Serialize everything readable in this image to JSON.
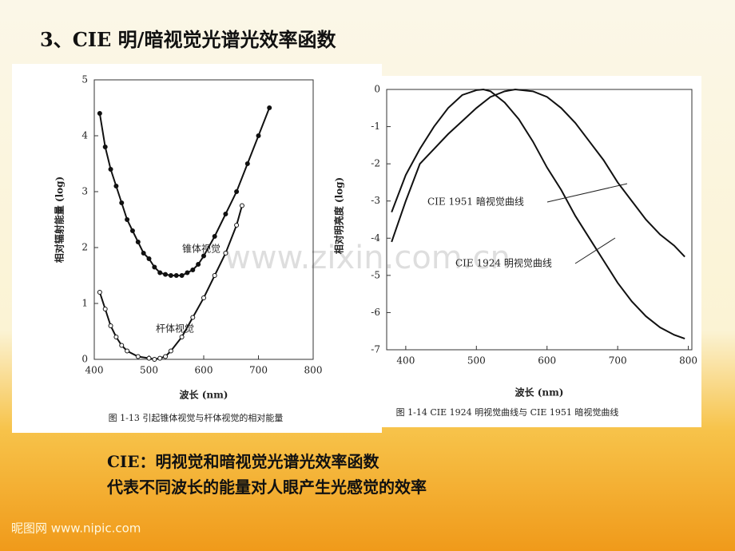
{
  "slide": {
    "title": "3、CIE 明/暗视觉光谱光效率函数",
    "lines": [
      "CIE：明视觉和暗视觉光谱光效率函数",
      "代表不同波长的能量对人眼产生光感觉的效率"
    ],
    "watermark": "www.zixin.com.cn",
    "footer": "昵图网 www.nipic.com"
  },
  "chart_data": [
    {
      "type": "line",
      "caption": "图 1-13  引起锥体视觉与杆体视觉的相对能量",
      "xlabel": "波长 (nm)",
      "ylabel": "相对辐射能量 (log)",
      "xlim": [
        400,
        800
      ],
      "xticks": [
        400,
        500,
        600,
        700,
        800
      ],
      "ylim": [
        0,
        5
      ],
      "yticks": [
        0,
        1,
        2,
        3,
        4,
        5
      ],
      "markers": true,
      "series": [
        {
          "name": "锥体视觉",
          "color": "#111111",
          "x": [
            410,
            420,
            430,
            440,
            450,
            460,
            470,
            480,
            490,
            500,
            510,
            520,
            530,
            540,
            550,
            560,
            570,
            580,
            590,
            600,
            620,
            640,
            660,
            680,
            700,
            720
          ],
          "values": [
            4.4,
            3.8,
            3.4,
            3.1,
            2.8,
            2.5,
            2.3,
            2.1,
            1.9,
            1.8,
            1.65,
            1.55,
            1.52,
            1.5,
            1.5,
            1.5,
            1.55,
            1.6,
            1.7,
            1.85,
            2.2,
            2.6,
            3.0,
            3.5,
            4.0,
            4.5
          ]
        },
        {
          "name": "杆体视觉",
          "color": "#111111",
          "x": [
            410,
            420,
            430,
            440,
            450,
            460,
            480,
            500,
            510,
            520,
            530,
            540,
            560,
            580,
            600,
            620,
            640,
            660,
            670
          ],
          "values": [
            1.2,
            0.9,
            0.6,
            0.4,
            0.25,
            0.15,
            0.05,
            0.02,
            0,
            0.02,
            0.05,
            0.15,
            0.4,
            0.75,
            1.1,
            1.5,
            1.9,
            2.4,
            2.75
          ]
        }
      ]
    },
    {
      "type": "line",
      "caption": "图 1-14  CIE 1924 明视觉曲线与 CIE 1951 暗视觉曲线",
      "xlabel": "波长 (nm)",
      "ylabel": "相对明亮度 (log)",
      "xlim": [
        373,
        805
      ],
      "xticks": [
        400,
        500,
        600,
        700,
        800
      ],
      "ylim": [
        -7,
        0
      ],
      "yticks": [
        0,
        -1,
        -2,
        -3,
        -4,
        -5,
        -6,
        -7
      ],
      "markers": false,
      "series": [
        {
          "name": "CIE 1951 暗视觉曲线",
          "color": "#111111",
          "x": [
            380,
            400,
            420,
            440,
            460,
            480,
            500,
            510,
            520,
            540,
            560,
            580,
            600,
            620,
            640,
            660,
            680,
            700,
            720,
            740,
            760,
            780,
            795
          ],
          "values": [
            -3.3,
            -2.3,
            -1.6,
            -1.0,
            -0.5,
            -0.15,
            -0.02,
            0,
            -0.05,
            -0.35,
            -0.8,
            -1.4,
            -2.1,
            -2.7,
            -3.4,
            -4.0,
            -4.6,
            -5.2,
            -5.7,
            -6.1,
            -6.4,
            -6.6,
            -6.7
          ]
        },
        {
          "name": "CIE 1924 明视觉曲线",
          "color": "#111111",
          "x": [
            380,
            400,
            420,
            440,
            460,
            480,
            500,
            520,
            540,
            555,
            580,
            600,
            620,
            640,
            660,
            680,
            700,
            720,
            740,
            760,
            780,
            795
          ],
          "values": [
            -4.1,
            -3.0,
            -2.0,
            -1.6,
            -1.2,
            -0.85,
            -0.5,
            -0.2,
            -0.05,
            0,
            -0.05,
            -0.2,
            -0.5,
            -0.9,
            -1.4,
            -1.9,
            -2.5,
            -3.0,
            -3.5,
            -3.9,
            -4.2,
            -4.5
          ]
        }
      ]
    }
  ]
}
